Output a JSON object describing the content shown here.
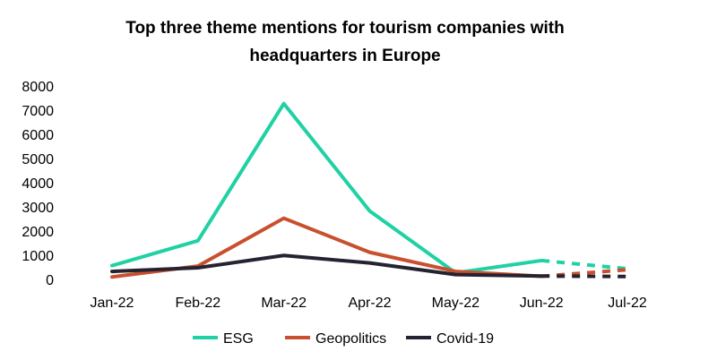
{
  "chart_data": {
    "type": "line",
    "title_lines": [
      "Top three theme mentions for tourism companies with",
      "headquarters in Europe"
    ],
    "xlabel": "",
    "ylabel": "",
    "categories": [
      "Jan-22",
      "Feb-22",
      "Mar-22",
      "Apr-22",
      "May-22",
      "Jun-22",
      "Jul-22"
    ],
    "ylim": [
      0,
      8000
    ],
    "yticks": [
      "0",
      "1000",
      "2000",
      "3000",
      "4000",
      "5000",
      "6000",
      "7000",
      "8000"
    ],
    "grid": false,
    "legend_position": "bottom",
    "forecast_from_index": 5,
    "series": [
      {
        "name": "ESG",
        "color": "#1fd1a4",
        "values": [
          570,
          1600,
          7270,
          2830,
          270,
          780,
          440
        ]
      },
      {
        "name": "Geopolitics",
        "color": "#c8502e",
        "values": [
          100,
          550,
          2530,
          1120,
          330,
          130,
          400
        ]
      },
      {
        "name": "Covid-19",
        "color": "#252331",
        "values": [
          330,
          480,
          990,
          680,
          200,
          140,
          120
        ]
      }
    ]
  }
}
